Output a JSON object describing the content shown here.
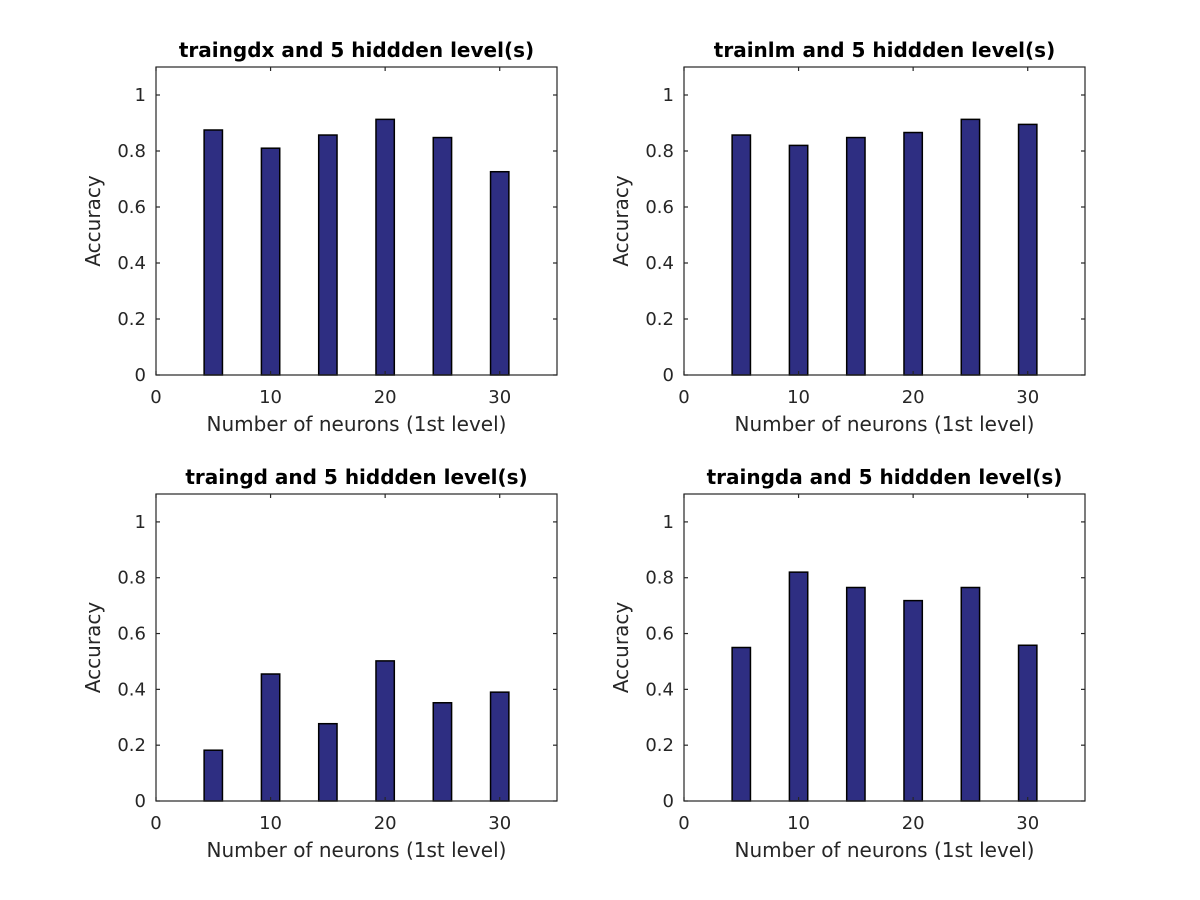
{
  "figure": {
    "background": "#ffffff",
    "bar_color": "#2e2e82",
    "bar_edge": "#000000",
    "axis_color": "#262626"
  },
  "chart_data": [
    {
      "type": "bar",
      "title": "traingdx and 5 hiddden level(s)",
      "xlabel": "Number of neurons (1st level)",
      "ylabel": "Accuracy",
      "x": [
        5,
        10,
        15,
        20,
        25,
        30
      ],
      "values": [
        0.875,
        0.81,
        0.857,
        0.913,
        0.848,
        0.726
      ],
      "xlim": [
        0,
        35
      ],
      "ylim": [
        0,
        1.1
      ],
      "xticks": [
        0,
        10,
        20,
        30
      ],
      "yticks": [
        0,
        0.2,
        0.4,
        0.6,
        0.8,
        1
      ],
      "xtick_labels": [
        "0",
        "10",
        "20",
        "30"
      ],
      "ytick_labels": [
        "0",
        "0.2",
        "0.4",
        "0.6",
        "0.8",
        "1"
      ],
      "grid": false
    },
    {
      "type": "bar",
      "title": "trainlm  and 5 hiddden level(s)",
      "xlabel": "Number of neurons (1st level)",
      "ylabel": "Accuracy",
      "x": [
        5,
        10,
        15,
        20,
        25,
        30
      ],
      "values": [
        0.857,
        0.82,
        0.848,
        0.866,
        0.913,
        0.895
      ],
      "xlim": [
        0,
        35
      ],
      "ylim": [
        0,
        1.1
      ],
      "xticks": [
        0,
        10,
        20,
        30
      ],
      "yticks": [
        0,
        0.2,
        0.4,
        0.6,
        0.8,
        1
      ],
      "xtick_labels": [
        "0",
        "10",
        "20",
        "30"
      ],
      "ytick_labels": [
        "0",
        "0.2",
        "0.4",
        "0.6",
        "0.8",
        "1"
      ],
      "grid": false
    },
    {
      "type": "bar",
      "title": "traingd  and 5 hiddden level(s)",
      "xlabel": "Number of neurons (1st level)",
      "ylabel": "Accuracy",
      "x": [
        5,
        10,
        15,
        20,
        25,
        30
      ],
      "values": [
        0.182,
        0.455,
        0.277,
        0.502,
        0.352,
        0.39
      ],
      "xlim": [
        0,
        35
      ],
      "ylim": [
        0,
        1.1
      ],
      "xticks": [
        0,
        10,
        20,
        30
      ],
      "yticks": [
        0,
        0.2,
        0.4,
        0.6,
        0.8,
        1
      ],
      "xtick_labels": [
        "0",
        "10",
        "20",
        "30"
      ],
      "ytick_labels": [
        "0",
        "0.2",
        "0.4",
        "0.6",
        "0.8",
        "1"
      ],
      "grid": false
    },
    {
      "type": "bar",
      "title": "traingda and 5 hiddden level(s)",
      "xlabel": "Number of neurons (1st level)",
      "ylabel": "Accuracy",
      "x": [
        5,
        10,
        15,
        20,
        25,
        30
      ],
      "values": [
        0.55,
        0.82,
        0.765,
        0.718,
        0.765,
        0.558
      ],
      "xlim": [
        0,
        35
      ],
      "ylim": [
        0,
        1.1
      ],
      "xticks": [
        0,
        10,
        20,
        30
      ],
      "yticks": [
        0,
        0.2,
        0.4,
        0.6,
        0.8,
        1
      ],
      "xtick_labels": [
        "0",
        "10",
        "20",
        "30"
      ],
      "ytick_labels": [
        "0",
        "0.2",
        "0.4",
        "0.6",
        "0.8",
        "1"
      ],
      "grid": false
    }
  ]
}
